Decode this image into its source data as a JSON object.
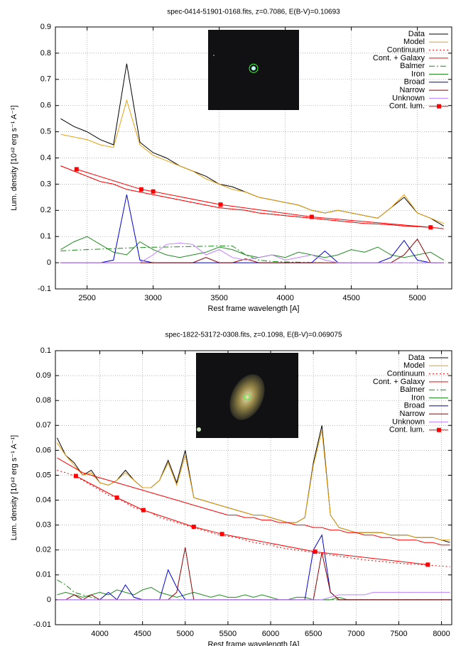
{
  "chart_data": [
    {
      "type": "line",
      "title": "spec-0414-51901-0168.fits, z=0.7086, E(B-V)=0.10693",
      "x_label": "Rest frame wavelength [A]",
      "y_label": "Lum. density [10⁴² erg s⁻¹ A⁻¹]",
      "xlim": [
        2260,
        5260
      ],
      "ylim": [
        -0.1,
        0.9
      ],
      "xticks": [
        2500,
        3000,
        3500,
        4000,
        4500,
        5000
      ],
      "yticks": [
        -0.1,
        0,
        0.1,
        0.2,
        0.3,
        0.4,
        0.5,
        0.6,
        0.7,
        0.8,
        0.9
      ],
      "grid": true,
      "legend": "top right",
      "x": [
        2300,
        2400,
        2500,
        2600,
        2700,
        2800,
        2900,
        3000,
        3100,
        3200,
        3300,
        3400,
        3500,
        3600,
        3700,
        3800,
        3900,
        4000,
        4100,
        4200,
        4300,
        4400,
        4500,
        4600,
        4700,
        4800,
        4900,
        5000,
        5100,
        5200
      ],
      "series": [
        {
          "name": "Data",
          "color": "#000000",
          "values": [
            0.55,
            0.52,
            0.5,
            0.47,
            0.45,
            0.76,
            0.46,
            0.42,
            0.4,
            0.37,
            0.35,
            0.33,
            0.3,
            0.29,
            0.27,
            0.25,
            0.24,
            0.23,
            0.22,
            0.2,
            0.19,
            0.2,
            0.19,
            0.18,
            0.17,
            0.21,
            0.25,
            0.19,
            0.17,
            0.14
          ]
        },
        {
          "name": "Model",
          "color": "#e8a010",
          "values": [
            0.49,
            0.48,
            0.47,
            0.45,
            0.44,
            0.62,
            0.45,
            0.41,
            0.39,
            0.37,
            0.35,
            0.32,
            0.3,
            0.28,
            0.27,
            0.25,
            0.24,
            0.23,
            0.22,
            0.2,
            0.19,
            0.2,
            0.19,
            0.18,
            0.17,
            0.21,
            0.26,
            0.19,
            0.17,
            0.15
          ]
        },
        {
          "name": "Continuum",
          "color": "#ff0000",
          "dash": "dotted",
          "values": [
            0.37,
            0.35,
            0.33,
            0.31,
            0.3,
            0.28,
            0.27,
            0.26,
            0.25,
            0.24,
            0.23,
            0.22,
            0.21,
            0.205,
            0.2,
            0.19,
            0.185,
            0.18,
            0.175,
            0.17,
            0.165,
            0.16,
            0.155,
            0.15,
            0.148,
            0.145,
            0.14,
            0.138,
            0.135,
            0.13
          ]
        },
        {
          "name": "Cont. + Galaxy",
          "color": "#ff0000",
          "values": [
            0.37,
            0.35,
            0.33,
            0.31,
            0.3,
            0.28,
            0.27,
            0.26,
            0.25,
            0.24,
            0.23,
            0.22,
            0.21,
            0.205,
            0.2,
            0.19,
            0.185,
            0.18,
            0.175,
            0.17,
            0.165,
            0.16,
            0.155,
            0.15,
            0.148,
            0.145,
            0.14,
            0.138,
            0.135,
            0.13
          ]
        },
        {
          "name": "Balmer",
          "color": "#1a8a1a",
          "dash": "dashdot",
          "values": [
            0.045,
            0.048,
            0.05,
            0.052,
            0.054,
            0.056,
            0.058,
            0.059,
            0.06,
            0.061,
            0.062,
            0.063,
            0.064,
            0.064,
            0.03,
            0.01,
            0.005,
            0.003,
            0.002,
            0.001,
            0,
            0,
            0,
            0,
            0,
            0,
            0,
            0,
            0,
            0
          ]
        },
        {
          "name": "Iron",
          "color": "#228b22",
          "values": [
            0.05,
            0.08,
            0.1,
            0.07,
            0.04,
            0.03,
            0.08,
            0.05,
            0.03,
            0.02,
            0.03,
            0.04,
            0.06,
            0.05,
            0.03,
            0.02,
            0.03,
            0.02,
            0.04,
            0.03,
            0.02,
            0.03,
            0.05,
            0.04,
            0.06,
            0.03,
            0.02,
            0.03,
            0.04,
            0.01
          ]
        },
        {
          "name": "Broad",
          "color": "#0000cc",
          "values": [
            0,
            0,
            0,
            0,
            0.01,
            0.26,
            0.01,
            0,
            0,
            0,
            0,
            0,
            0,
            0,
            0,
            0,
            0,
            0,
            0,
            0,
            0.045,
            0,
            0,
            0,
            0,
            0.02,
            0.085,
            0.01,
            0,
            0
          ]
        },
        {
          "name": "Narrow",
          "color": "#8b0000",
          "values": [
            0,
            0,
            0,
            0,
            0,
            0,
            0,
            0,
            0,
            0,
            0,
            0.02,
            0,
            0,
            0.015,
            0,
            0,
            0,
            0,
            0,
            0,
            0,
            0,
            0,
            0,
            0,
            0.03,
            0.09,
            0,
            0
          ]
        },
        {
          "name": "Unknown",
          "color": "#c080ff",
          "values": [
            0,
            0,
            0,
            0,
            0,
            0,
            0,
            0.03,
            0.07,
            0.075,
            0.07,
            0.03,
            0.05,
            0.02,
            0.01,
            0.02,
            0.03,
            0.01,
            0.02,
            0.03,
            0.01,
            0,
            0,
            0,
            0,
            0,
            0,
            0,
            0,
            0
          ]
        },
        {
          "name": "Cont. lum.",
          "color": "#ff0000",
          "marker": "square",
          "x": [
            2420,
            2910,
            3000,
            3510,
            4200,
            5100
          ],
          "values": [
            0.357,
            0.28,
            0.272,
            0.222,
            0.175,
            0.135
          ]
        }
      ]
    },
    {
      "type": "line",
      "title": "spec-1822-53172-0308.fits, z=0.1098, E(B-V)=0.069075",
      "x_label": "Rest frame wavelength [A]",
      "y_label": "Lum. density [10⁴² erg s⁻¹ A⁻¹]",
      "xlim": [
        3480,
        8120
      ],
      "ylim": [
        -0.01,
        0.1
      ],
      "xticks": [
        4000,
        4500,
        5000,
        5500,
        6000,
        6500,
        7000,
        7500,
        8000
      ],
      "yticks": [
        -0.01,
        0,
        0.01,
        0.02,
        0.03,
        0.04,
        0.05,
        0.06,
        0.07,
        0.08,
        0.09,
        0.1
      ],
      "grid": true,
      "legend": "top right",
      "x": [
        3500,
        3600,
        3700,
        3800,
        3900,
        4000,
        4100,
        4200,
        4300,
        4400,
        4500,
        4600,
        4700,
        4800,
        4900,
        5000,
        5100,
        5200,
        5300,
        5400,
        5500,
        5600,
        5700,
        5800,
        5900,
        6000,
        6100,
        6200,
        6300,
        6400,
        6500,
        6600,
        6700,
        6800,
        6900,
        7000,
        7100,
        7200,
        7300,
        7400,
        7500,
        7600,
        7700,
        7800,
        7900,
        8000,
        8100
      ],
      "series": [
        {
          "name": "Data",
          "color": "#000000",
          "values": [
            0.065,
            0.058,
            0.055,
            0.05,
            0.052,
            0.047,
            0.046,
            0.048,
            0.052,
            0.048,
            0.045,
            0.045,
            0.048,
            0.056,
            0.047,
            0.06,
            0.041,
            0.04,
            0.039,
            0.038,
            0.037,
            0.036,
            0.035,
            0.034,
            0.034,
            0.033,
            0.032,
            0.031,
            0.031,
            0.033,
            0.055,
            0.07,
            0.034,
            0.029,
            0.028,
            0.027,
            0.027,
            0.027,
            0.027,
            0.026,
            0.026,
            0.026,
            0.025,
            0.025,
            0.025,
            0.024,
            0.023
          ]
        },
        {
          "name": "Model",
          "color": "#e8a010",
          "values": [
            0.063,
            0.058,
            0.054,
            0.05,
            0.051,
            0.047,
            0.046,
            0.048,
            0.051,
            0.048,
            0.045,
            0.045,
            0.048,
            0.055,
            0.046,
            0.058,
            0.041,
            0.04,
            0.039,
            0.038,
            0.037,
            0.036,
            0.035,
            0.034,
            0.034,
            0.033,
            0.032,
            0.031,
            0.031,
            0.033,
            0.054,
            0.068,
            0.034,
            0.029,
            0.028,
            0.027,
            0.027,
            0.027,
            0.027,
            0.026,
            0.026,
            0.026,
            0.025,
            0.025,
            0.025,
            0.024,
            0.024
          ]
        },
        {
          "name": "Continuum",
          "color": "#ff0000",
          "dash": "dotted",
          "values": [
            0.052,
            0.051,
            0.0497,
            0.048,
            0.046,
            0.044,
            0.042,
            0.041,
            0.039,
            0.037,
            0.036,
            0.035,
            0.033,
            0.032,
            0.031,
            0.03,
            0.029,
            0.028,
            0.027,
            0.026,
            0.0255,
            0.025,
            0.024,
            0.023,
            0.0225,
            0.022,
            0.021,
            0.0205,
            0.02,
            0.0195,
            0.019,
            0.0185,
            0.018,
            0.0175,
            0.017,
            0.0165,
            0.016,
            0.0157,
            0.0154,
            0.015,
            0.0147,
            0.0144,
            0.0142,
            0.014,
            0.0138,
            0.0135,
            0.0133
          ]
        },
        {
          "name": "Cont. + Galaxy",
          "color": "#ff0000",
          "values": [
            0.057,
            0.055,
            0.053,
            0.051,
            0.05,
            0.049,
            0.048,
            0.047,
            0.046,
            0.045,
            0.044,
            0.043,
            0.042,
            0.041,
            0.04,
            0.039,
            0.038,
            0.037,
            0.036,
            0.035,
            0.034,
            0.034,
            0.033,
            0.033,
            0.032,
            0.032,
            0.031,
            0.031,
            0.03,
            0.03,
            0.029,
            0.029,
            0.028,
            0.028,
            0.027,
            0.027,
            0.026,
            0.026,
            0.025,
            0.025,
            0.024,
            0.024,
            0.024,
            0.023,
            0.023,
            0.022,
            0.022
          ]
        },
        {
          "name": "Balmer",
          "color": "#1a8a1a",
          "dash": "dashdot",
          "values": [
            0.008,
            0.006,
            0.003,
            0.002,
            0.001,
            0,
            0,
            0,
            0,
            0,
            0,
            0,
            0,
            0,
            0,
            0,
            0,
            0,
            0,
            0,
            0,
            0,
            0,
            0,
            0,
            0,
            0,
            0,
            0,
            0,
            0,
            0,
            0,
            0,
            0,
            0,
            0,
            0,
            0,
            0,
            0,
            0,
            0,
            0,
            0,
            0,
            0
          ]
        },
        {
          "name": "Iron",
          "color": "#228b22",
          "values": [
            0.002,
            0.003,
            0.002,
            0.001,
            0.002,
            0.003,
            0.002,
            0.004,
            0.003,
            0.002,
            0.004,
            0.005,
            0.003,
            0.002,
            0.001,
            0.002,
            0.003,
            0.002,
            0.001,
            0.002,
            0.001,
            0.001,
            0.002,
            0.001,
            0.002,
            0.001,
            0,
            0,
            0.001,
            0.001,
            0,
            0,
            0,
            0.001,
            0,
            0,
            0,
            0,
            0,
            0,
            0,
            0,
            0,
            0,
            0,
            0,
            0
          ]
        },
        {
          "name": "Broad",
          "color": "#0000cc",
          "values": [
            0,
            0,
            0,
            0,
            0,
            0,
            0.003,
            0,
            0.006,
            0.001,
            0,
            0,
            0,
            0.012,
            0.005,
            0,
            0,
            0,
            0,
            0,
            0,
            0,
            0,
            0,
            0,
            0,
            0,
            0,
            0,
            0,
            0.02,
            0.026,
            0.003,
            0,
            0,
            0,
            0,
            0,
            0,
            0,
            0,
            0,
            0,
            0,
            0,
            0,
            0
          ]
        },
        {
          "name": "Narrow",
          "color": "#8b0000",
          "values": [
            0,
            0,
            0.002,
            0,
            0.002,
            0,
            0,
            0,
            0,
            0,
            0,
            0,
            0,
            0,
            0.003,
            0.021,
            0,
            0,
            0,
            0,
            0,
            0,
            0,
            0,
            0,
            0,
            0,
            0,
            0,
            0,
            0,
            0.019,
            0.003,
            0,
            0,
            0,
            0,
            0,
            0,
            0,
            0,
            0,
            0,
            0,
            0,
            0,
            0
          ]
        },
        {
          "name": "Unknown",
          "color": "#c080ff",
          "values": [
            0,
            0,
            0,
            0,
            0,
            0,
            0,
            0,
            0,
            0,
            0,
            0,
            0,
            0,
            0,
            0,
            0,
            0,
            0,
            0,
            0,
            0,
            0,
            0,
            0,
            0,
            0,
            0,
            0,
            0,
            0,
            0,
            0.001,
            0.002,
            0.002,
            0.002,
            0.002,
            0.003,
            0.003,
            0.003,
            0.003,
            0.003,
            0.003,
            0.003,
            0.003,
            0.003,
            0.003
          ]
        },
        {
          "name": "Cont. lum.",
          "color": "#ff0000",
          "marker": "square",
          "x": [
            3720,
            4200,
            4510,
            5100,
            5430,
            6520,
            7840
          ],
          "values": [
            0.0497,
            0.041,
            0.036,
            0.0293,
            0.0264,
            0.0193,
            0.0141
          ]
        }
      ]
    }
  ]
}
